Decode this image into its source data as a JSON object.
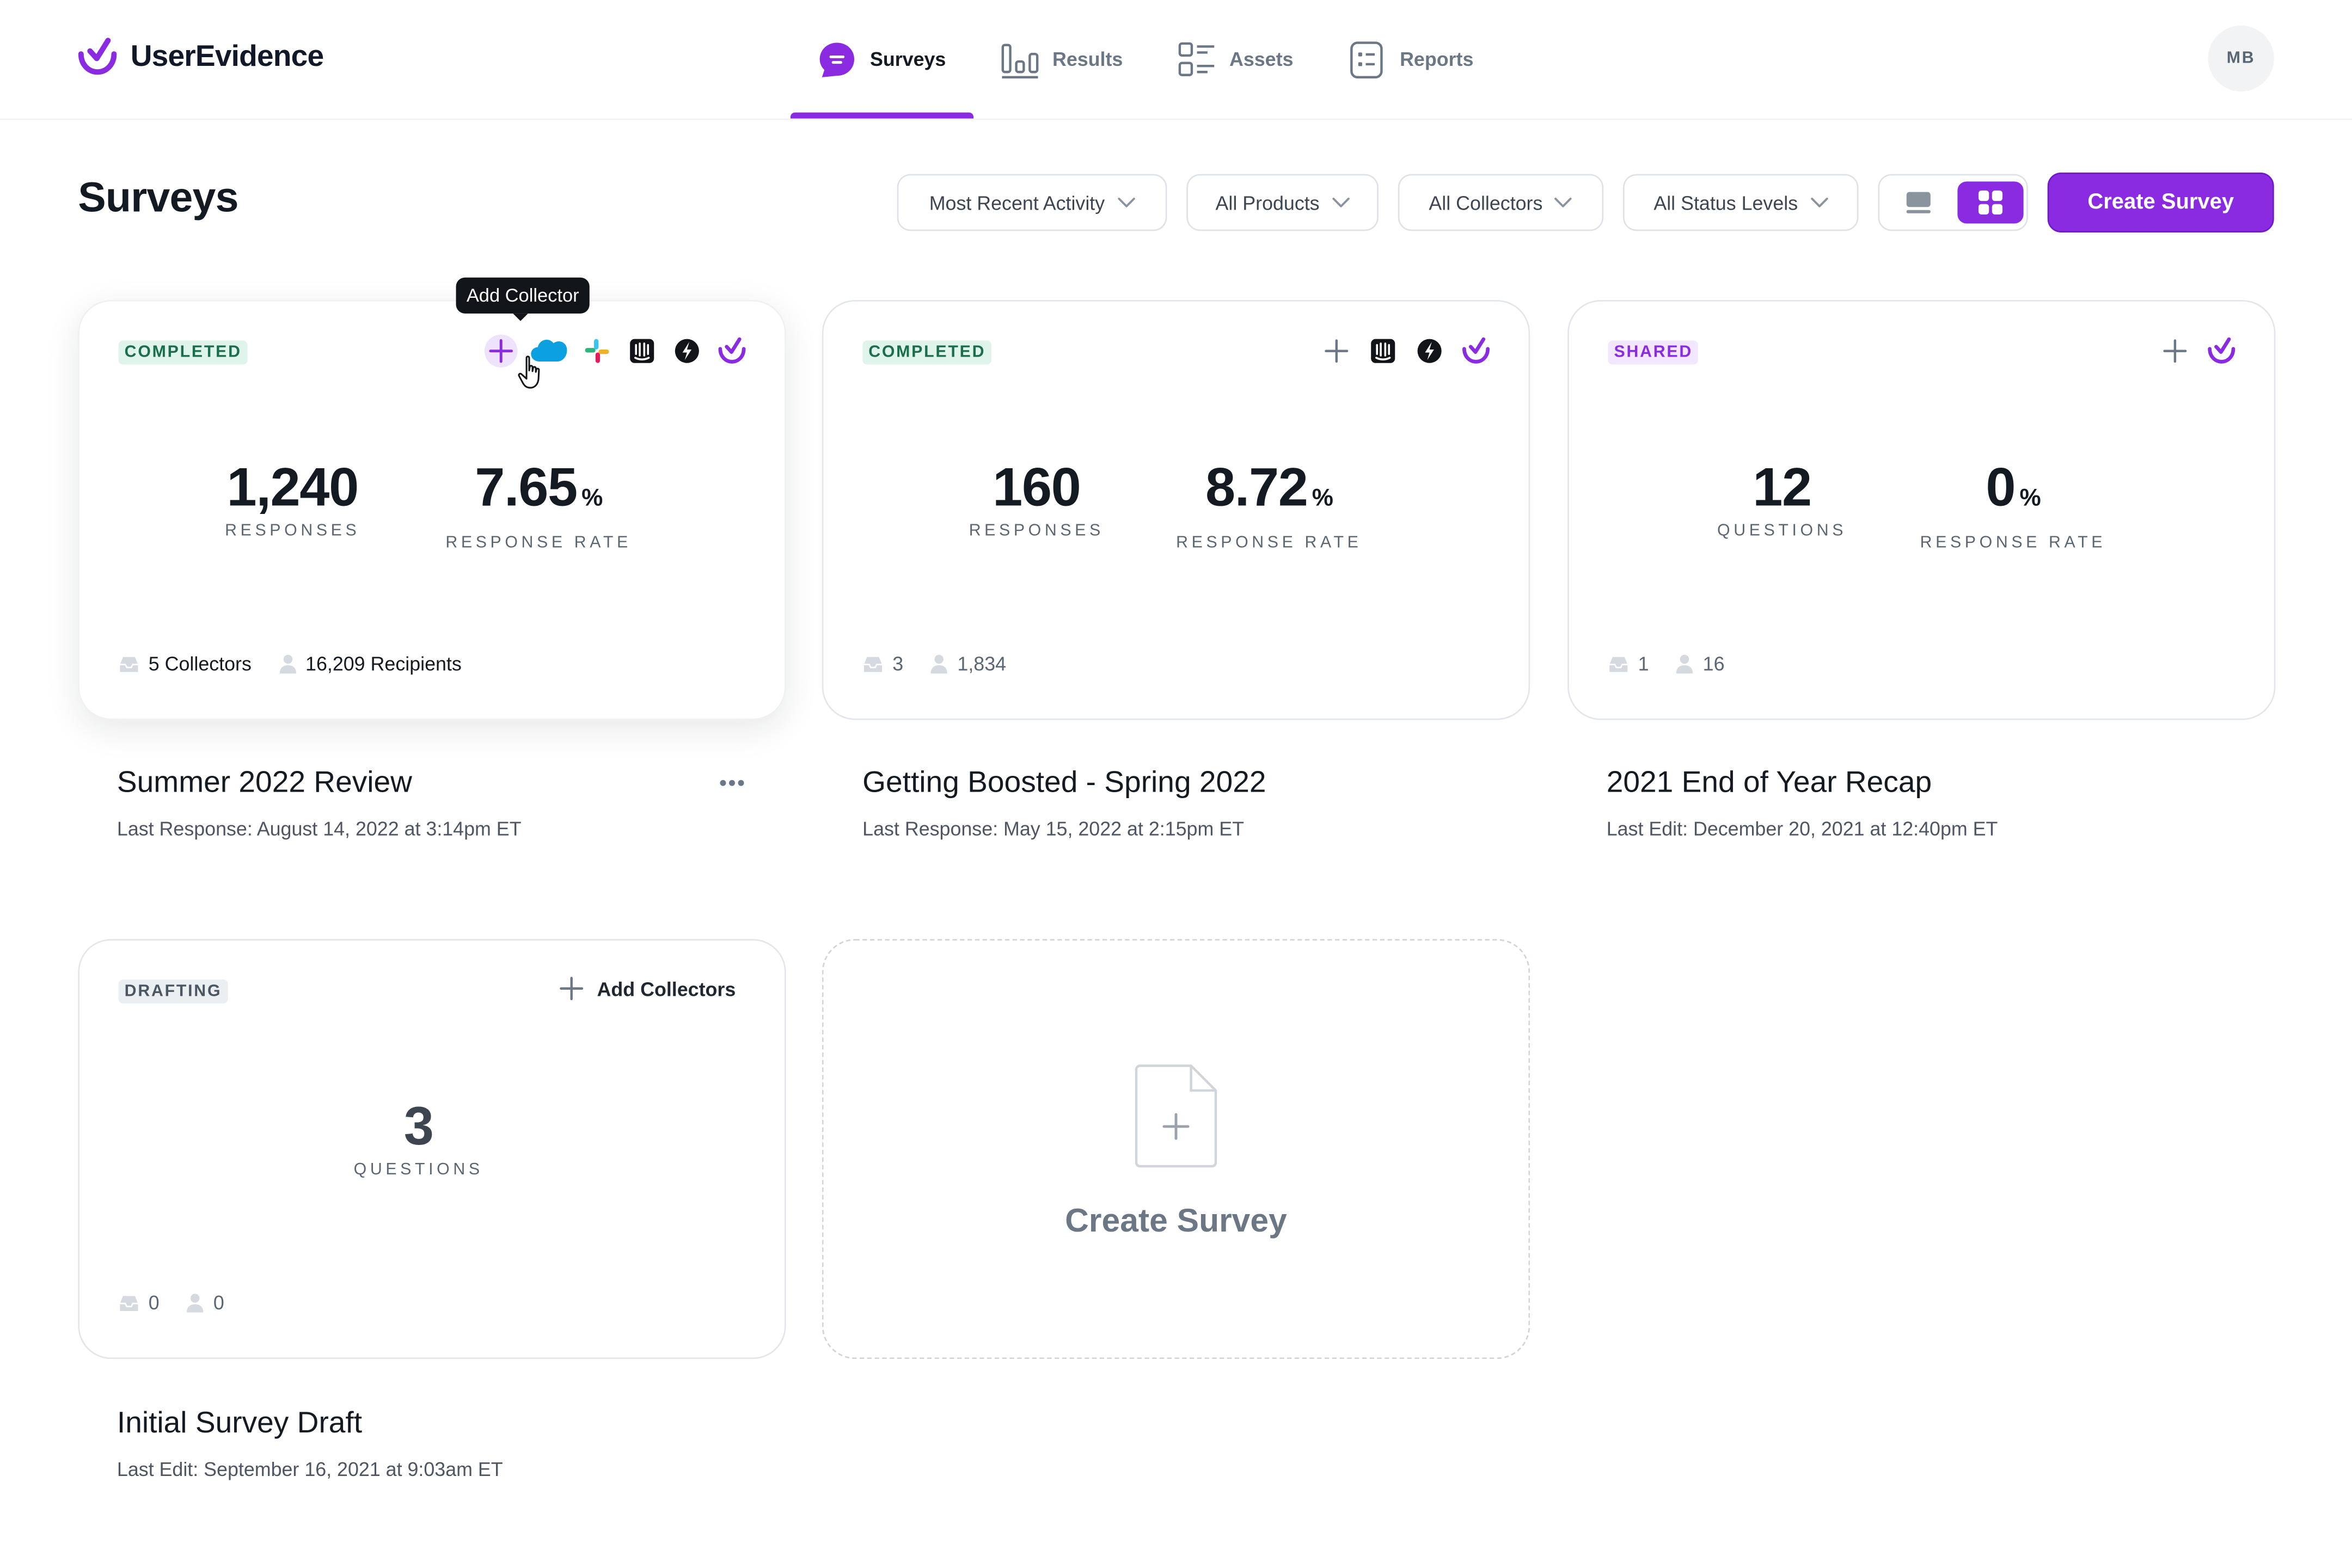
{
  "brand": {
    "name": "UserEvidence",
    "accent": "#8a2be2"
  },
  "nav": {
    "items": [
      {
        "label": "Surveys",
        "icon": "chat-bubble-icon",
        "active": true
      },
      {
        "label": "Results",
        "icon": "bar-chart-icon"
      },
      {
        "label": "Assets",
        "icon": "list-icon"
      },
      {
        "label": "Reports",
        "icon": "report-icon"
      }
    ]
  },
  "user": {
    "initials": "MB"
  },
  "page": {
    "title": "Surveys"
  },
  "filters": {
    "sort": "Most Recent Activity",
    "products": "All Products",
    "collectors": "All Collectors",
    "status": "All Status Levels"
  },
  "toolbar": {
    "create_label": "Create Survey"
  },
  "tooltip": {
    "text": "Add Collector"
  },
  "surveys": [
    {
      "status": "COMPLETED",
      "stat1_value": "1,240",
      "stat1_label": "RESPONSES",
      "stat2_value": "7.65",
      "stat2_unit": "%",
      "stat2_label": "RESPONSE RATE",
      "collectors": "5 Collectors",
      "recipients": "16,209 Recipients",
      "title": "Summer 2022 Review",
      "subtitle": "Last Response: August 14, 2022 at 3:14pm ET"
    },
    {
      "status": "COMPLETED",
      "stat1_value": "160",
      "stat1_label": "RESPONSES",
      "stat2_value": "8.72",
      "stat2_unit": "%",
      "stat2_label": "RESPONSE RATE",
      "collectors": "3",
      "recipients": "1,834",
      "title": "Getting Boosted - Spring 2022",
      "subtitle": "Last Response: May 15, 2022 at 2:15pm ET"
    },
    {
      "status": "SHARED",
      "stat1_value": "12",
      "stat1_label": "QUESTIONS",
      "stat2_value": "0",
      "stat2_unit": "%",
      "stat2_label": "RESPONSE RATE",
      "collectors": "1",
      "recipients": "16",
      "title": "2021 End of Year Recap",
      "subtitle": "Last Edit: December 20, 2021 at 12:40pm ET"
    },
    {
      "status": "DRAFTING",
      "add_collectors": "Add Collectors",
      "stat1_value": "3",
      "stat1_label": "QUESTIONS",
      "collectors": "0",
      "recipients": "0",
      "title": "Initial Survey Draft",
      "subtitle": "Last Edit: September 16, 2021 at 9:03am ET"
    }
  ],
  "create_card": {
    "label": "Create Survey"
  }
}
